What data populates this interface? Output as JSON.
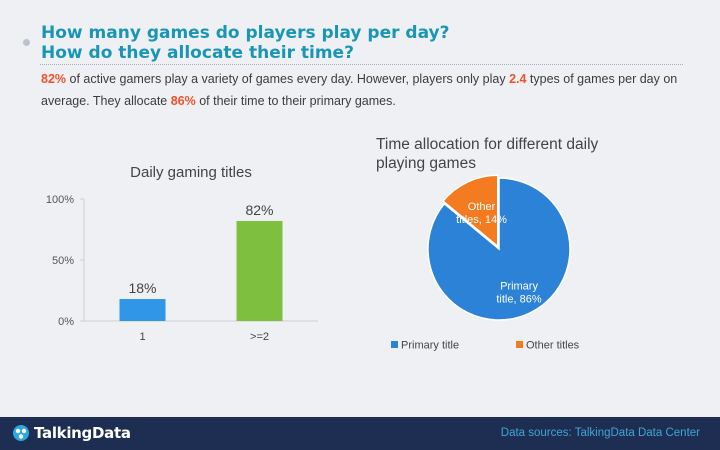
{
  "page": {
    "title_line1": "How many games do players play per day?",
    "title_line2": "How do they allocate their time?",
    "summary": {
      "p1": "82%",
      "t1": " of active gamers play a variety of games every day. However, players only play ",
      "p2": "2.4",
      "t2": " types of games per day on average. They allocate ",
      "p3": "86%",
      "t3": " of their time to their primary games."
    },
    "highlight_color": "#f0522c",
    "title_color": "#1996b6"
  },
  "chart_data": [
    {
      "type": "bar",
      "title": "Daily gaming titles",
      "categories": [
        "1",
        ">=2"
      ],
      "values": [
        18,
        82
      ],
      "data_labels": [
        "18%",
        "82%"
      ],
      "colors": [
        "#2f96e8",
        "#7fbf40"
      ],
      "ylim": [
        0,
        100
      ],
      "yticks": [
        "0%",
        "50%",
        "100%"
      ],
      "grid": false,
      "xlabel": "",
      "ylabel": ""
    },
    {
      "type": "pie",
      "title_line1": "Time allocation for different daily",
      "title_line2": "playing games",
      "slices": [
        {
          "name": "Primary title",
          "value": 86,
          "label_line1": "Primary",
          "label_line2": "title, 86%",
          "color": "#2b82d6"
        },
        {
          "name": "Other titles",
          "value": 14,
          "label_line1": "Other",
          "label_line2": "titles, 14%",
          "color": "#f47b20"
        }
      ],
      "legend_position": "bottom"
    }
  ],
  "footer": {
    "brand": "TalkingData",
    "source": "Data sources: TalkingData Data Center",
    "bg_color": "#1e2e52"
  }
}
